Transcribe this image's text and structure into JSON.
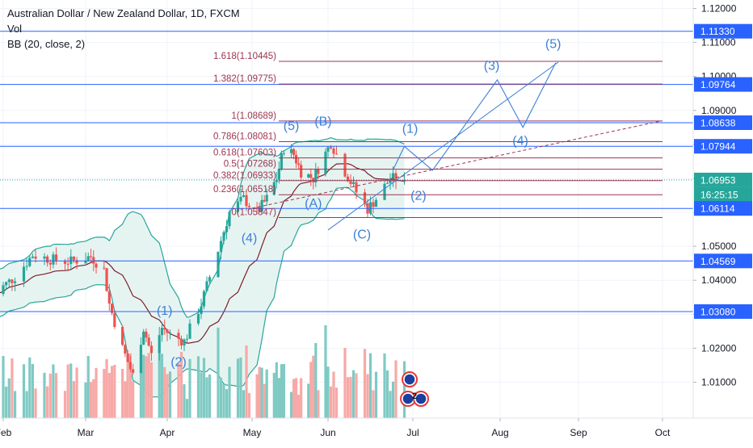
{
  "legend": {
    "title": "Australian Dollar / New Zealand Dollar, 1D, FXCM",
    "volume": "Vol",
    "bollinger": "BB (20, close, 2)"
  },
  "colors": {
    "bg": "#ffffff",
    "grid": "#f0f3fa",
    "up": "#26a69a",
    "down": "#ef5350",
    "vol_up": "#7fcac3",
    "vol_down": "#f7a9a7",
    "bb_band": "#26a69a",
    "bb_fill": "#e6f4f1",
    "bb_basis": "#7b1e2b",
    "horizontal_line": "#2962ff",
    "fib_line": "#9c3550",
    "wave": "#3d7fd6",
    "label_bg": "#2962ff"
  },
  "chart_data": {
    "type": "candlestick",
    "symbol": "Australian Dollar / New Zealand Dollar",
    "timeframe": "1D",
    "source": "FXCM",
    "x_ticks": [
      "Feb",
      "Mar",
      "Apr",
      "May",
      "Jun",
      "Jul",
      "Aug",
      "Sep",
      "Oct"
    ],
    "y_range": [
      1.0,
      1.12
    ],
    "y_ticks": [
      "1.12000",
      "1.11000",
      "1.10000",
      "1.09000",
      "1.08000",
      "1.07000",
      "1.06000",
      "1.05000",
      "1.04000",
      "1.03000",
      "1.02000",
      "1.01000"
    ],
    "y_tick_values": [
      1.12,
      1.11,
      1.1,
      1.09,
      1.08,
      1.07,
      1.06,
      1.05,
      1.04,
      1.03,
      1.02,
      1.01
    ],
    "price_labels": [
      {
        "value": 1.1133,
        "text": "1.11330"
      },
      {
        "value": 1.09764,
        "text": "1.09764"
      },
      {
        "value": 1.08638,
        "text": "1.08638"
      },
      {
        "value": 1.07944,
        "text": "1.07944"
      },
      {
        "value": 1.06953,
        "text": "1.06953",
        "current": true
      },
      {
        "value": 1.06114,
        "text": "1.06114"
      },
      {
        "value": 1.04569,
        "text": "1.04569"
      },
      {
        "value": 1.0308,
        "text": "1.03080"
      }
    ],
    "countdown": "16:25:15",
    "fib_levels": [
      {
        "ratio_label": "1.618(1.10445)",
        "value": 1.10445
      },
      {
        "ratio_label": "1.382(1.09775)",
        "value": 1.09775
      },
      {
        "ratio_label": "1(1.08689)",
        "value": 1.08689
      },
      {
        "ratio_label": "0.786(1.08081)",
        "value": 1.08081
      },
      {
        "ratio_label": "0.618(1.07603)",
        "value": 1.07603
      },
      {
        "ratio_label": "0.5(1.07268)",
        "value": 1.07268
      },
      {
        "ratio_label": "0.382(1.06933)",
        "value": 1.06933
      },
      {
        "ratio_label": "0.236(1.06518)",
        "value": 1.06518
      },
      {
        "ratio_label": "0(1.05847)",
        "value": 1.05847
      }
    ],
    "wave_labels": [
      {
        "text": "(1)",
        "date": "2021-03-31",
        "price": 1.0298
      },
      {
        "text": "(2)",
        "date": "2021-04-05",
        "price": 1.0148
      },
      {
        "text": "(4)",
        "date": "2021-04-30",
        "price": 1.0512
      },
      {
        "text": "(5)",
        "date": "2021-05-17",
        "price": 1.0842
      },
      {
        "text": "(B)",
        "date": "2021-05-30",
        "price": 1.0855
      },
      {
        "text": "(A)",
        "date": "2021-05-26",
        "price": 1.0614
      },
      {
        "text": "(C)",
        "date": "2021-06-13",
        "price": 1.0523
      },
      {
        "text": "(1)",
        "date": "2021-06-30",
        "price": 1.0834
      },
      {
        "text": "(2)",
        "date": "2021-07-03",
        "price": 1.0637
      },
      {
        "text": "(3)",
        "date": "2021-07-29",
        "price": 1.102
      },
      {
        "text": "(4)",
        "date": "2021-08-09",
        "price": 1.0798
      },
      {
        "text": "(5)",
        "date": "2021-08-22",
        "price": 1.1084
      }
    ],
    "wave_path": [
      {
        "date": "2021-06-24",
        "price": 1.0725
      },
      {
        "date": "2021-06-28",
        "price": 1.0794
      },
      {
        "date": "2021-07-08",
        "price": 1.0724
      },
      {
        "date": "2021-07-31",
        "price": 1.099
      },
      {
        "date": "2021-08-10",
        "price": 1.085
      },
      {
        "date": "2021-08-23",
        "price": 1.104
      }
    ],
    "trendlines": [
      {
        "from": {
          "date": "2021-06-01",
          "price": 1.0548
        },
        "to": {
          "date": "2021-08-24",
          "price": 1.1042
        },
        "style": "solid"
      },
      {
        "from": {
          "date": "2021-05-01",
          "price": 1.0612
        },
        "to": {
          "date": "2021-09-30",
          "price": 1.0868
        },
        "style": "dashed"
      }
    ]
  }
}
